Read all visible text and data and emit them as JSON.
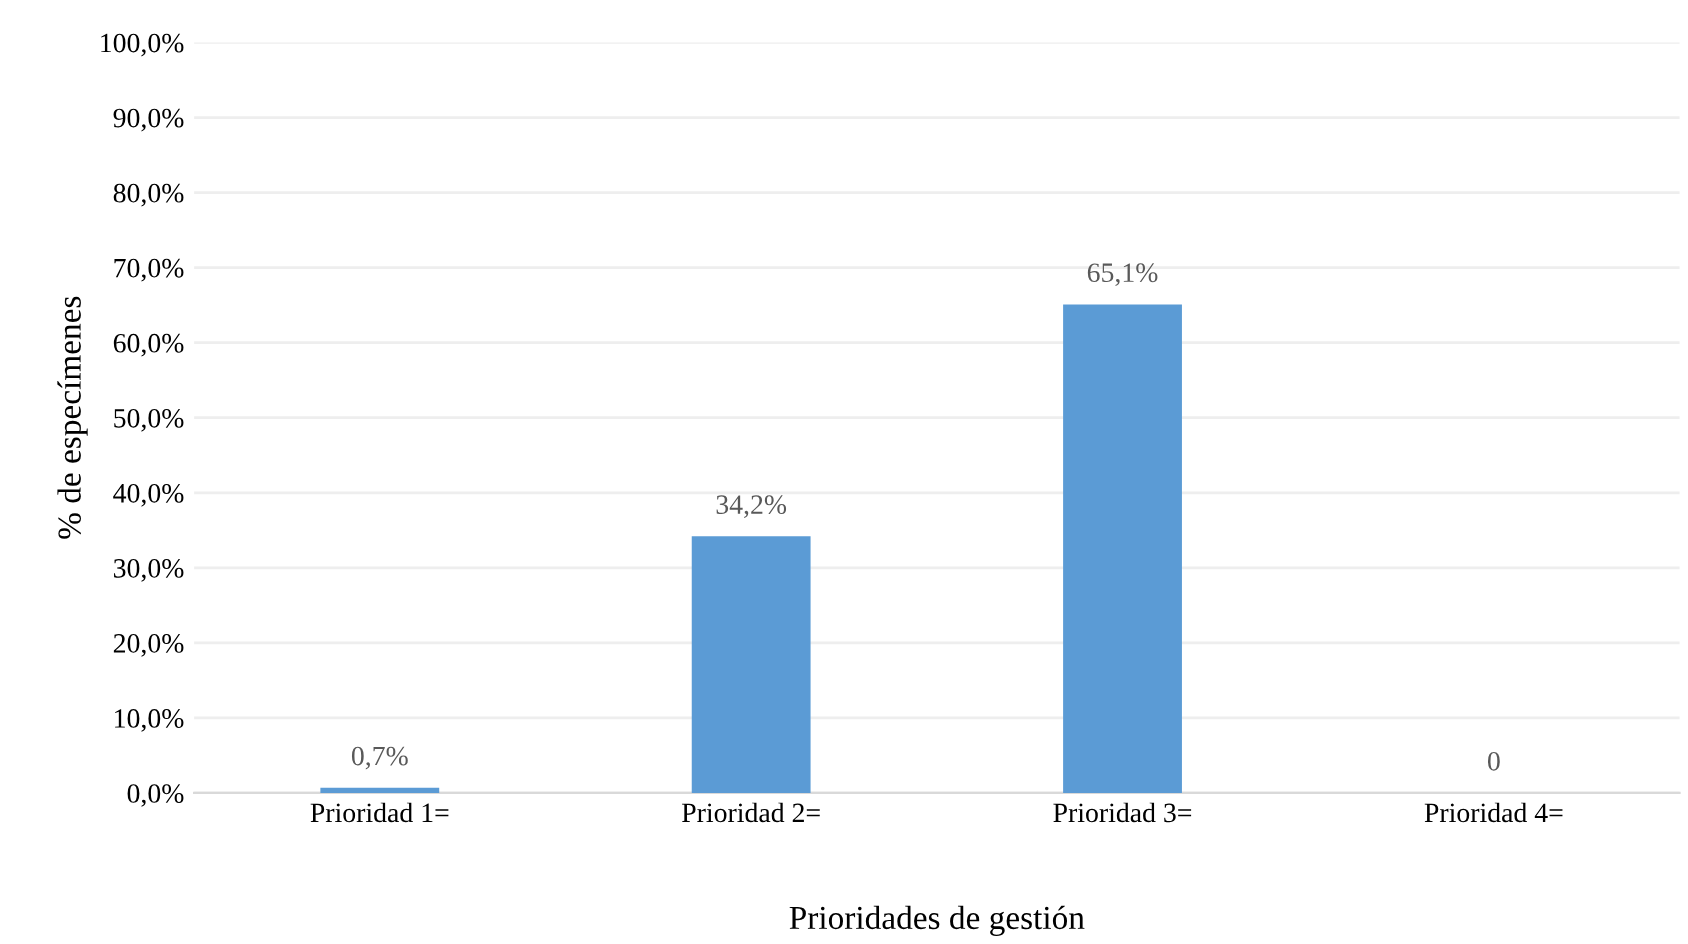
{
  "chart_data": {
    "type": "bar",
    "xlabel": "Prioridades de gestión",
    "ylabel": "% de especímenes",
    "categories": [
      "Prioridad 1=",
      "Prioridad 2=",
      "Prioridad 3=",
      "Prioridad 4="
    ],
    "values": [
      0.7,
      34.2,
      65.1,
      0
    ],
    "value_labels": [
      "0,7%",
      "34,2%",
      "65,1%",
      "0"
    ],
    "color": "#5b9bd5",
    "ylim": [
      0,
      100
    ],
    "yticks": [
      {
        "value": 0,
        "label": "0,0%"
      },
      {
        "value": 10,
        "label": "10,0%"
      },
      {
        "value": 20,
        "label": "20,0%"
      },
      {
        "value": 30,
        "label": "30,0%"
      },
      {
        "value": 40,
        "label": "40,0%"
      },
      {
        "value": 50,
        "label": "50,0%"
      },
      {
        "value": 60,
        "label": "60,0%"
      },
      {
        "value": 70,
        "label": "70,0%"
      },
      {
        "value": 80,
        "label": "80,0%"
      },
      {
        "value": 90,
        "label": "90,0%"
      },
      {
        "value": 100,
        "label": "100,0%"
      }
    ],
    "grid": "y"
  }
}
